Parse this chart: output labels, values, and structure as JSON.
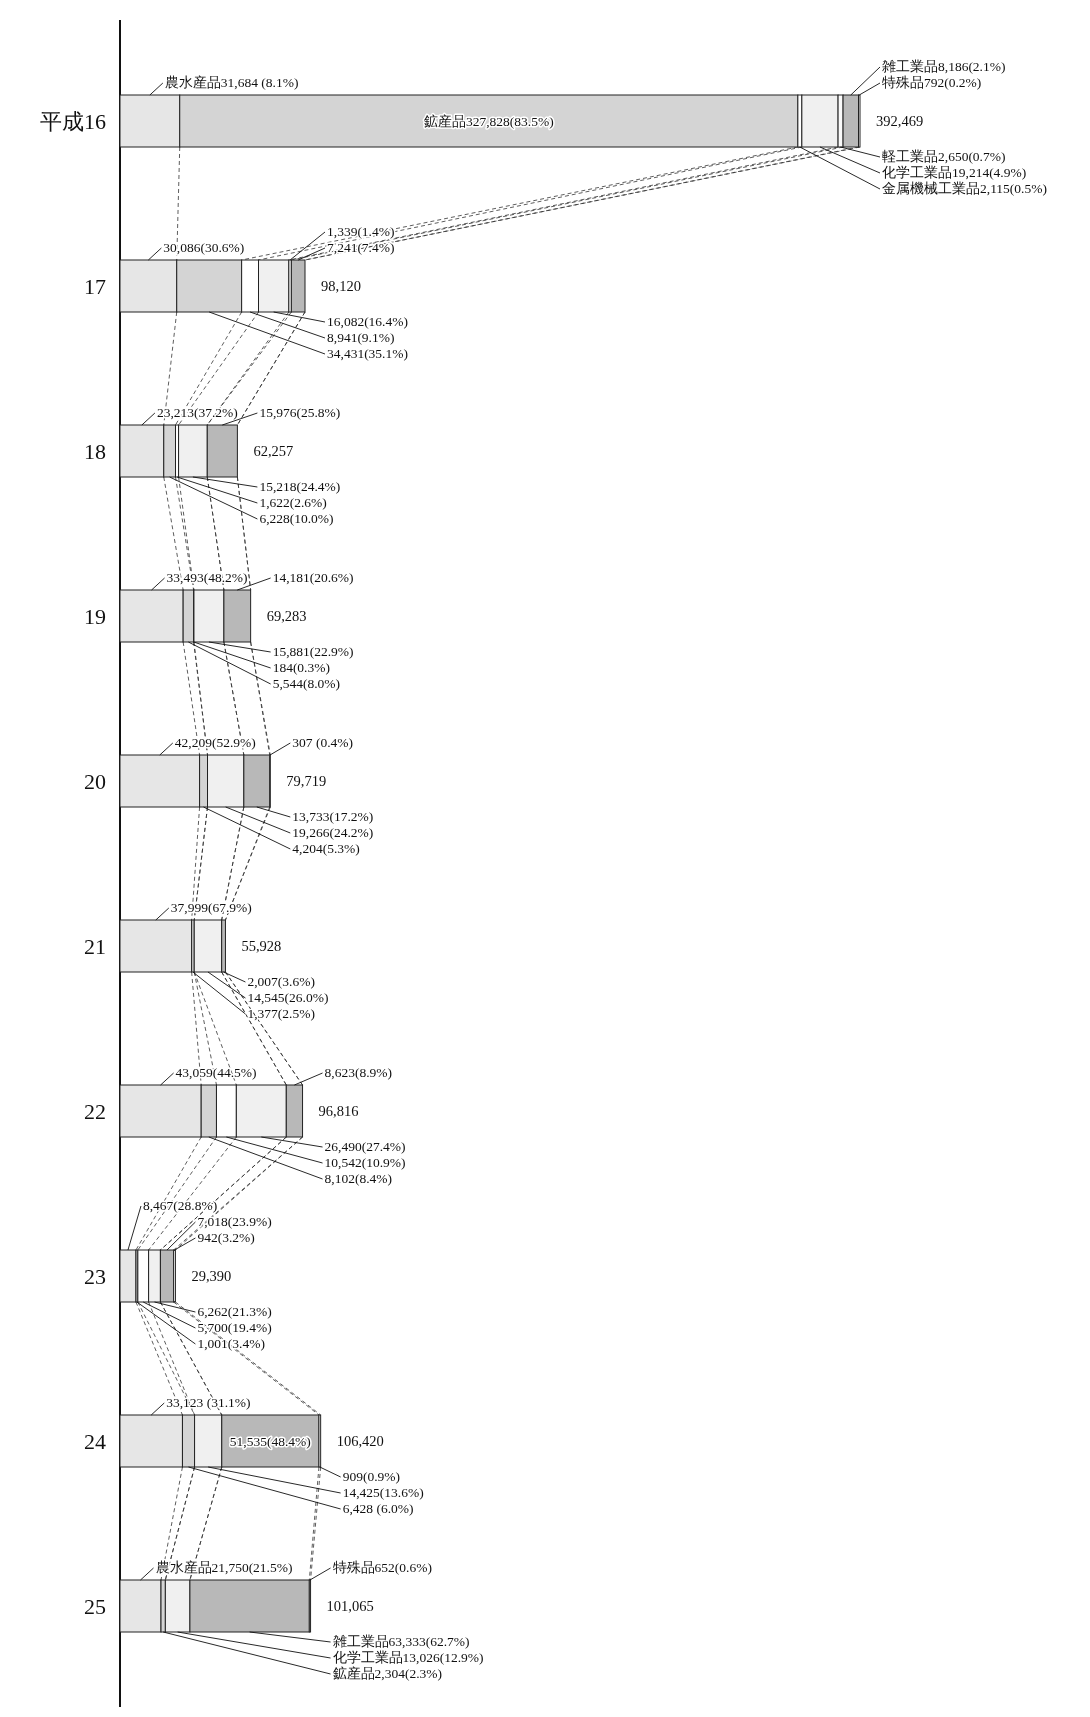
{
  "chart_data": {
    "type": "bar",
    "orientation": "horizontal",
    "stacked": true,
    "categories": [
      "平成16",
      "17",
      "18",
      "19",
      "20",
      "21",
      "22",
      "23",
      "24",
      "25"
    ],
    "series": [
      {
        "color": "#e6e6e6",
        "values": [
          31684,
          30086,
          23213,
          33493,
          42209,
          37999,
          43059,
          8467,
          33123,
          21750
        ],
        "value_labels": [
          "農水産品31,684 (8.1%)",
          "30,086(30.6%)",
          "23,213(37.2%)",
          "33,493(48.2%)",
          "42,209(52.9%)",
          "37,999(67.9%)",
          "43,059(44.5%)",
          "8,467(28.8%)",
          "33,123 (31.1%)",
          "農水産品21,750(21.5%)"
        ]
      },
      {
        "color": "#d4d4d4",
        "values": [
          327828,
          34431,
          6228,
          5544,
          4204,
          1377,
          8102,
          1001,
          6428,
          2304
        ],
        "value_labels": [
          "鉱産品327,828(83.5%)",
          "34,431(35.1%)",
          "6,228(10.0%)",
          "5,544(8.0%)",
          "4,204(5.3%)",
          "1,377(2.5%)",
          "8,102(8.4%)",
          "1,001(3.4%)",
          "6,428 (6.0%)",
          "鉱産品2,304(2.3%)"
        ]
      },
      {
        "color": "#ffffff",
        "values": [
          2115,
          8941,
          1622,
          184,
          null,
          null,
          10542,
          5700,
          null,
          null
        ],
        "value_labels": [
          "金属機械工業品2,115(0.5%)",
          "8,941(9.1%)",
          "1,622(2.6%)",
          "184(0.3%)",
          null,
          null,
          "10,542(10.9%)",
          "5,700(19.4%)",
          null,
          null
        ]
      },
      {
        "color": "#f0f0f0",
        "values": [
          19214,
          16082,
          15218,
          15881,
          19266,
          14545,
          26490,
          6262,
          14425,
          13026
        ],
        "value_labels": [
          "化学工業品19,214(4.9%)",
          "16,082(16.4%)",
          "15,218(24.4%)",
          "15,881(22.9%)",
          "19,266(24.2%)",
          "14,545(26.0%)",
          "26,490(27.4%)",
          "6,262(21.3%)",
          "14,425(13.6%)",
          "化学工業品13,026(12.9%)"
        ]
      },
      {
        "color": "#fafafa",
        "values": [
          2650,
          1339,
          null,
          null,
          null,
          null,
          null,
          null,
          null,
          null
        ],
        "value_labels": [
          "軽工業品2,650(0.7%)",
          "1,339(1.4%)",
          null,
          null,
          null,
          null,
          null,
          null,
          null,
          null
        ]
      },
      {
        "color": "#b8b8b8",
        "values": [
          8186,
          7241,
          15976,
          14181,
          13733,
          2007,
          8623,
          7018,
          51535,
          63333
        ],
        "value_labels": [
          "雑工業品8,186(2.1%)",
          "7,241(7.4%)",
          "15,976(25.8%)",
          "14,181(20.6%)",
          "13,733(17.2%)",
          "2,007(3.6%)",
          "8,623(8.9%)",
          "7,018(23.9%)",
          "51,535(48.4%)",
          "雑工業品63,333(62.7%)"
        ]
      },
      {
        "color": "#ffffff",
        "values": [
          792,
          null,
          null,
          null,
          307,
          null,
          null,
          942,
          909,
          652
        ],
        "value_labels": [
          "特殊品792(0.2%)",
          null,
          null,
          null,
          "307 (0.4%)",
          null,
          null,
          "942(3.2%)",
          "909(0.9%)",
          "特殊品652(0.6%)"
        ]
      }
    ],
    "totals": [
      "392,469",
      "98,120",
      "62,257",
      "69,283",
      "79,719",
      "55,928",
      "96,816",
      "29,390",
      "106,420",
      "101,065"
    ]
  }
}
